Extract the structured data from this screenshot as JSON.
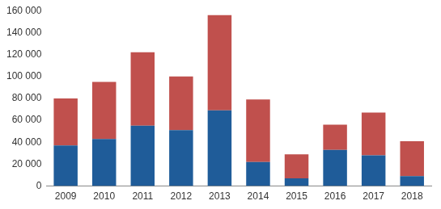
{
  "chart_data": {
    "type": "bar",
    "stacked": true,
    "grid": false,
    "categories": [
      "2009",
      "2010",
      "2011",
      "2012",
      "2013",
      "2014",
      "2015",
      "2016",
      "2017",
      "2018"
    ],
    "series": [
      {
        "color": "#1f5c99",
        "values": [
          37000,
          43000,
          55000,
          51000,
          69000,
          22000,
          7000,
          33000,
          28000,
          9000
        ]
      },
      {
        "color": "#c0504d",
        "values": [
          43000,
          52000,
          67000,
          49000,
          87000,
          57000,
          22000,
          23000,
          39000,
          32000
        ]
      }
    ],
    "ylim": [
      0,
      160000
    ],
    "yticks": [
      0,
      {
        "value": 20000,
        "label": "20 000"
      },
      {
        "value": 40000,
        "label": "40 000"
      },
      {
        "value": 60000,
        "label": "60 000"
      },
      {
        "value": 80000,
        "label": "80 000"
      },
      {
        "value": 100000,
        "label": "100 000"
      },
      {
        "value": 120000,
        "label": "120 000"
      },
      {
        "value": 140000,
        "label": "140 000"
      },
      {
        "value": 160000,
        "label": "160 000"
      }
    ]
  }
}
